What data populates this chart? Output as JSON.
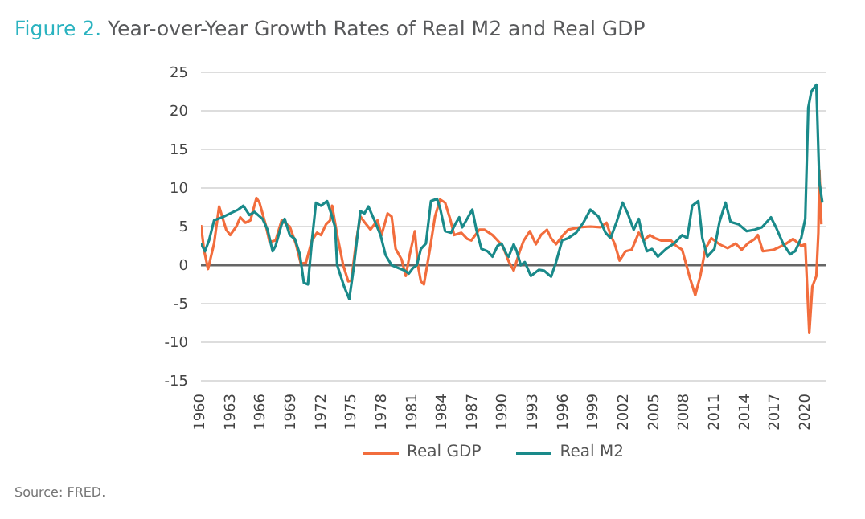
{
  "chart_data": {
    "type": "line",
    "title": "Figure 2. Year-over-Year Growth Rates of Real M2 and Real GDP",
    "annotations": [
      "Source: FRED."
    ],
    "xlim": [
      1960,
      2022
    ],
    "xticks": [
      1960,
      1963,
      1966,
      1969,
      1972,
      1975,
      1978,
      1981,
      1984,
      1987,
      1990,
      1993,
      1996,
      1999,
      2002,
      2005,
      2008,
      2011,
      2014,
      2017,
      2020
    ],
    "ylim": [
      -15,
      25
    ],
    "yticks": [
      -15,
      -10,
      -5,
      0,
      5,
      10,
      15,
      20,
      25
    ],
    "grid": "y",
    "legend": "bottom",
    "line_style": "solid",
    "ref_lines": [
      {
        "axis": "y",
        "value": 0,
        "color": "#666666"
      }
    ],
    "series": [
      {
        "name": "Real GDP",
        "color": "#f26d3d",
        "x": [
          1960.0,
          1960.3,
          1960.7,
          1961.3,
          1961.8,
          1962.1,
          1962.5,
          1962.9,
          1963.5,
          1963.9,
          1964.4,
          1964.9,
          1965.5,
          1965.8,
          1966.4,
          1966.8,
          1967.4,
          1968.0,
          1968.8,
          1969.4,
          1969.9,
          1970.4,
          1971.0,
          1971.5,
          1971.9,
          1972.4,
          1972.8,
          1973.0,
          1973.5,
          1974.1,
          1974.6,
          1974.9,
          1975.4,
          1975.8,
          1976.2,
          1976.8,
          1977.5,
          1977.9,
          1978.5,
          1978.9,
          1979.3,
          1979.9,
          1980.3,
          1980.7,
          1981.2,
          1981.5,
          1981.8,
          1982.1,
          1982.7,
          1983.2,
          1983.7,
          1984.2,
          1984.7,
          1985.1,
          1985.8,
          1986.4,
          1986.8,
          1987.6,
          1988.1,
          1988.9,
          1989.4,
          1989.9,
          1990.5,
          1991.0,
          1991.6,
          1992.0,
          1992.6,
          1993.2,
          1993.7,
          1994.3,
          1994.7,
          1995.2,
          1995.9,
          1996.4,
          1997.5,
          1998.6,
          1999.6,
          2000.2,
          2000.6,
          2001.0,
          2001.5,
          2002.1,
          2002.7,
          2003.4,
          2003.9,
          2004.5,
          2005.0,
          2005.6,
          2006.6,
          2007.1,
          2007.7,
          2008.5,
          2009.0,
          2009.5,
          2010.0,
          2010.6,
          2011.4,
          2012.2,
          2013.0,
          2013.6,
          2014.2,
          2014.9,
          2015.2,
          2015.7,
          2016.8,
          2017.9,
          2018.7,
          2019.5,
          2019.9,
          2020.3,
          2020.6,
          2021.0,
          2021.2,
          2021.3,
          2021.5
        ],
        "values": [
          5.2,
          2,
          -0.5,
          2.8,
          7.6,
          6.3,
          4.6,
          3.9,
          5,
          6.2,
          5.5,
          5.8,
          8.7,
          8.1,
          5.3,
          3,
          3.2,
          5.8,
          5,
          2.8,
          0.2,
          0.3,
          3.2,
          4.2,
          3.9,
          5.3,
          5.8,
          7.7,
          3.9,
          0,
          -2.1,
          -2,
          3.2,
          6.3,
          5.6,
          4.6,
          5.8,
          3.9,
          6.7,
          6.3,
          2.1,
          0.7,
          -1.4,
          1.4,
          4.4,
          0,
          -2.1,
          -2.5,
          2.1,
          6.3,
          8.5,
          8.1,
          6,
          3.9,
          4.2,
          3.4,
          3.2,
          4.6,
          4.6,
          3.9,
          3.2,
          2.5,
          0.5,
          -0.7,
          1.8,
          3.2,
          4.4,
          2.7,
          3.9,
          4.6,
          3.5,
          2.7,
          3.9,
          4.6,
          4.9,
          5,
          4.9,
          5.5,
          3.9,
          2.8,
          0.6,
          1.8,
          2,
          4.2,
          3.2,
          3.9,
          3.5,
          3.2,
          3.2,
          2.5,
          2,
          -1.8,
          -3.9,
          -1.4,
          2.1,
          3.5,
          2.7,
          2.2,
          2.8,
          2,
          2.8,
          3.4,
          3.9,
          1.8,
          2,
          2.7,
          3.4,
          2.5,
          2.7,
          -8.8,
          -2.8,
          -1.4,
          4.2,
          12.3,
          5.3
        ]
      },
      {
        "name": "Real M2",
        "color": "#1a8a8a",
        "x": [
          1960.0,
          1960.4,
          1960.8,
          1961.3,
          1962.1,
          1962.9,
          1963.7,
          1964.2,
          1964.8,
          1965.3,
          1966.1,
          1966.6,
          1967.1,
          1967.4,
          1968.0,
          1968.3,
          1968.8,
          1969.3,
          1969.8,
          1970.2,
          1970.6,
          1971.0,
          1971.4,
          1971.9,
          1972.5,
          1972.9,
          1973.3,
          1973.5,
          1974.2,
          1974.7,
          1975.1,
          1975.8,
          1976.2,
          1976.6,
          1977.2,
          1977.8,
          1978.3,
          1978.9,
          1979.6,
          1980.2,
          1980.6,
          1981.0,
          1981.4,
          1981.8,
          1982.3,
          1982.8,
          1983.4,
          1983.7,
          1984.2,
          1984.8,
          1985.2,
          1985.6,
          1985.9,
          1986.3,
          1986.9,
          1987.3,
          1987.8,
          1988.4,
          1988.9,
          1989.4,
          1989.8,
          1990.3,
          1990.5,
          1991.0,
          1991.3,
          1991.7,
          1992.1,
          1992.7,
          1993.5,
          1994.0,
          1994.7,
          1995.2,
          1995.8,
          1996.4,
          1997.2,
          1997.9,
          1998.6,
          1999.4,
          2000.1,
          2000.6,
          2001.2,
          2001.8,
          2002.3,
          2002.9,
          2003.4,
          2003.8,
          2004.2,
          2004.7,
          2005.3,
          2006.1,
          2006.9,
          2007.7,
          2008.2,
          2008.7,
          2009.3,
          2009.7,
          2010.2,
          2010.9,
          2011.4,
          2012.0,
          2012.5,
          2013.3,
          2014.1,
          2014.9,
          2015.6,
          2016.5,
          2017.0,
          2017.7,
          2018.4,
          2018.9,
          2019.5,
          2019.9,
          2020.2,
          2020.5,
          2021.0,
          2021.3,
          2021.6
        ],
        "values": [
          2.8,
          1.8,
          3.2,
          5.8,
          6.2,
          6.7,
          7.2,
          7.7,
          6.5,
          6.9,
          6,
          4.6,
          1.8,
          2.5,
          5.3,
          6,
          3.9,
          3.4,
          1.4,
          -2.3,
          -2.5,
          3.2,
          8.1,
          7.7,
          8.3,
          6.7,
          4.9,
          0,
          -2.8,
          -4.4,
          -0.7,
          7,
          6.7,
          7.6,
          5.8,
          3.9,
          1.3,
          0,
          -0.4,
          -0.7,
          -1.1,
          -0.4,
          0,
          2.1,
          2.8,
          8.3,
          8.6,
          7.4,
          4.4,
          4.2,
          5.3,
          6.2,
          4.9,
          5.8,
          7.2,
          4.6,
          2.1,
          1.8,
          1.1,
          2.5,
          2.8,
          1.4,
          1.1,
          2.7,
          1.8,
          0,
          0.4,
          -1.4,
          -0.6,
          -0.7,
          -1.5,
          0.4,
          3.2,
          3.5,
          4.2,
          5.5,
          7.2,
          6.3,
          4.2,
          3.5,
          5.6,
          8.1,
          6.7,
          4.6,
          6,
          3.5,
          1.8,
          2.1,
          1.1,
          2.1,
          2.8,
          3.9,
          3.5,
          7.7,
          8.3,
          3.5,
          1.1,
          2.1,
          5.6,
          8.1,
          5.6,
          5.3,
          4.4,
          4.6,
          4.9,
          6.2,
          4.9,
          2.8,
          1.4,
          1.8,
          3.5,
          6,
          20.4,
          22.5,
          23.4,
          10.7,
          8.1
        ]
      }
    ]
  }
}
